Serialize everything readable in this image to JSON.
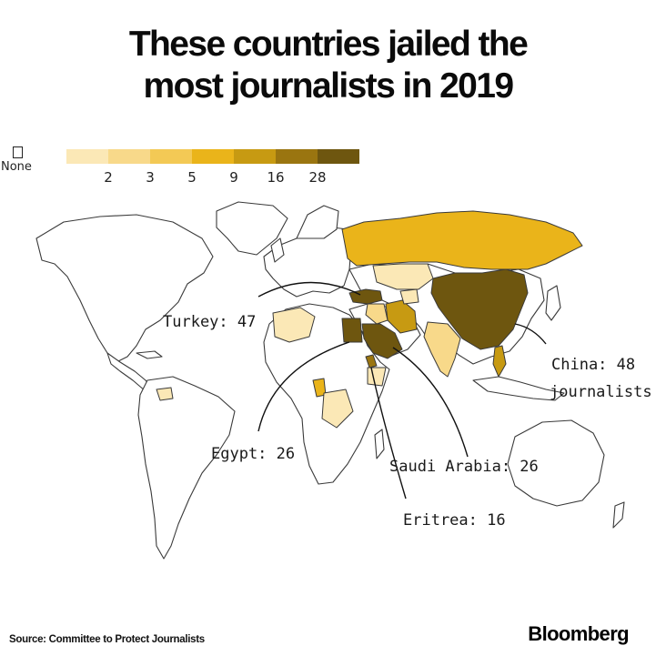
{
  "title": {
    "line1": "These countries jailed the",
    "line2": "most journalists in 2019"
  },
  "legend": {
    "none_label": "None",
    "bins": [
      {
        "label": "2",
        "color": "#fbe8b6"
      },
      {
        "label": "3",
        "color": "#f8d98a"
      },
      {
        "label": "5",
        "color": "#f3c955"
      },
      {
        "label": "9",
        "color": "#eab41a"
      },
      {
        "label": "16",
        "color": "#c79a12"
      },
      {
        "label": "28",
        "color": "#9a7510"
      },
      {
        "label": "",
        "color": "#6e560f"
      }
    ]
  },
  "callouts": {
    "turkey": "Turkey: 47",
    "china_line1": "China: 48",
    "china_line2": "journalists",
    "egypt": "Egypt: 26",
    "saudi": "Saudi Arabia: 26",
    "eritrea": "Eritrea: 16"
  },
  "country_values": {
    "China": 48,
    "Turkey": 47,
    "Egypt": 26,
    "Saudi Arabia": 26,
    "Eritrea": 16
  },
  "footer": {
    "source": "Source: Committee to Protect Journalists",
    "brand": "Bloomberg"
  }
}
